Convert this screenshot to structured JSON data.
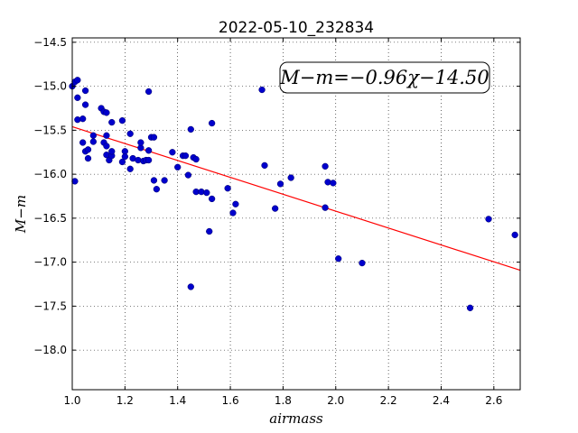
{
  "chart_data": {
    "type": "scatter",
    "title": "2022-05-10_232834",
    "xlabel": "airmass",
    "ylabel": "M−m",
    "xlim": [
      1.0,
      2.7
    ],
    "ylim": [
      -18.45,
      -14.45
    ],
    "y_inverted": true,
    "grid": true,
    "x_ticks": [
      "1.0",
      "1.2",
      "1.4",
      "1.6",
      "1.8",
      "2.0",
      "2.2",
      "2.4",
      "2.6"
    ],
    "y_ticks": [
      "−14.5",
      "−15.0",
      "−15.5",
      "−16.0",
      "−16.5",
      "−17.0",
      "−17.5",
      "−18.0"
    ],
    "annotation": "M−m=−0.96χ−14.50",
    "fit": {
      "slope": -0.96,
      "intercept": -14.5,
      "color": "#ff0000"
    },
    "point_color": "#0000cc",
    "points": [
      [
        1.0,
        -15.0
      ],
      [
        1.01,
        -14.95
      ],
      [
        1.02,
        -14.93
      ],
      [
        1.01,
        -16.08
      ],
      [
        1.02,
        -15.13
      ],
      [
        1.02,
        -15.38
      ],
      [
        1.04,
        -15.37
      ],
      [
        1.05,
        -15.05
      ],
      [
        1.05,
        -15.21
      ],
      [
        1.04,
        -15.64
      ],
      [
        1.05,
        -15.74
      ],
      [
        1.06,
        -15.72
      ],
      [
        1.06,
        -15.82
      ],
      [
        1.08,
        -15.56
      ],
      [
        1.08,
        -15.63
      ],
      [
        1.11,
        -15.25
      ],
      [
        1.12,
        -15.29
      ],
      [
        1.13,
        -15.3
      ],
      [
        1.12,
        -15.64
      ],
      [
        1.13,
        -15.56
      ],
      [
        1.13,
        -15.68
      ],
      [
        1.13,
        -15.78
      ],
      [
        1.14,
        -15.84
      ],
      [
        1.15,
        -15.79
      ],
      [
        1.15,
        -15.74
      ],
      [
        1.15,
        -15.41
      ],
      [
        1.19,
        -15.39
      ],
      [
        1.19,
        -15.86
      ],
      [
        1.2,
        -15.74
      ],
      [
        1.2,
        -15.8
      ],
      [
        1.22,
        -15.54
      ],
      [
        1.22,
        -15.94
      ],
      [
        1.23,
        -15.82
      ],
      [
        1.25,
        -15.84
      ],
      [
        1.26,
        -15.7
      ],
      [
        1.26,
        -15.64
      ],
      [
        1.27,
        -15.85
      ],
      [
        1.28,
        -15.84
      ],
      [
        1.29,
        -15.06
      ],
      [
        1.29,
        -15.73
      ],
      [
        1.29,
        -15.84
      ],
      [
        1.3,
        -15.58
      ],
      [
        1.31,
        -15.58
      ],
      [
        1.31,
        -16.07
      ],
      [
        1.32,
        -16.17
      ],
      [
        1.35,
        -16.07
      ],
      [
        1.38,
        -15.75
      ],
      [
        1.4,
        -15.92
      ],
      [
        1.42,
        -15.79
      ],
      [
        1.43,
        -15.79
      ],
      [
        1.44,
        -16.01
      ],
      [
        1.45,
        -15.49
      ],
      [
        1.46,
        -15.81
      ],
      [
        1.45,
        -17.28
      ],
      [
        1.47,
        -15.83
      ],
      [
        1.47,
        -16.2
      ],
      [
        1.49,
        -16.2
      ],
      [
        1.51,
        -16.21
      ],
      [
        1.52,
        -16.65
      ],
      [
        1.53,
        -15.42
      ],
      [
        1.53,
        -16.28
      ],
      [
        1.59,
        -16.16
      ],
      [
        1.61,
        -16.44
      ],
      [
        1.62,
        -16.34
      ],
      [
        1.72,
        -15.04
      ],
      [
        1.73,
        -15.9
      ],
      [
        1.77,
        -16.39
      ],
      [
        1.79,
        -16.11
      ],
      [
        1.83,
        -16.04
      ],
      [
        1.96,
        -15.91
      ],
      [
        1.96,
        -16.38
      ],
      [
        1.97,
        -16.09
      ],
      [
        1.99,
        -16.1
      ],
      [
        2.01,
        -16.96
      ],
      [
        2.1,
        -17.01
      ],
      [
        2.51,
        -17.52
      ],
      [
        2.58,
        -16.51
      ],
      [
        2.68,
        -16.69
      ]
    ]
  }
}
